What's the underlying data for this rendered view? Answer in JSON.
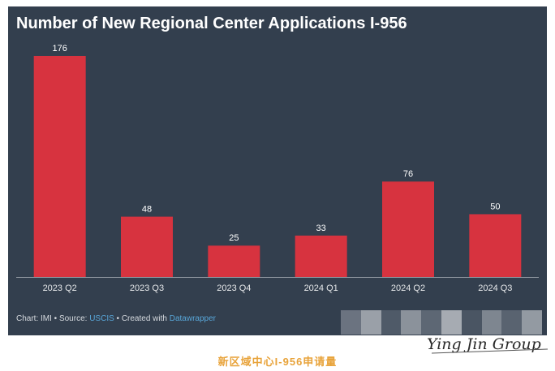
{
  "chart_data": {
    "type": "bar",
    "title": "Number of New Regional Center Applications I-956",
    "categories": [
      "2023 Q2",
      "2023 Q3",
      "2023 Q4",
      "2024 Q1",
      "2024 Q2",
      "2024 Q3"
    ],
    "values": [
      176,
      48,
      25,
      33,
      76,
      50
    ],
    "data_labels": [
      "176",
      "48",
      "25",
      "33",
      "76",
      "50"
    ],
    "xlabel": "",
    "ylabel": "",
    "ylim": [
      0,
      176
    ],
    "grid": false,
    "legend": "none",
    "bar_color": "#d7333f",
    "background_color": "#333f4e"
  },
  "footer": {
    "prefix": "Chart: IMI • Source: ",
    "source": "USCIS",
    "middle": " • Created with ",
    "tool": "Datawrapper"
  },
  "caption": "新区域中心I-956申请量",
  "signature": "Ying Jin Group"
}
